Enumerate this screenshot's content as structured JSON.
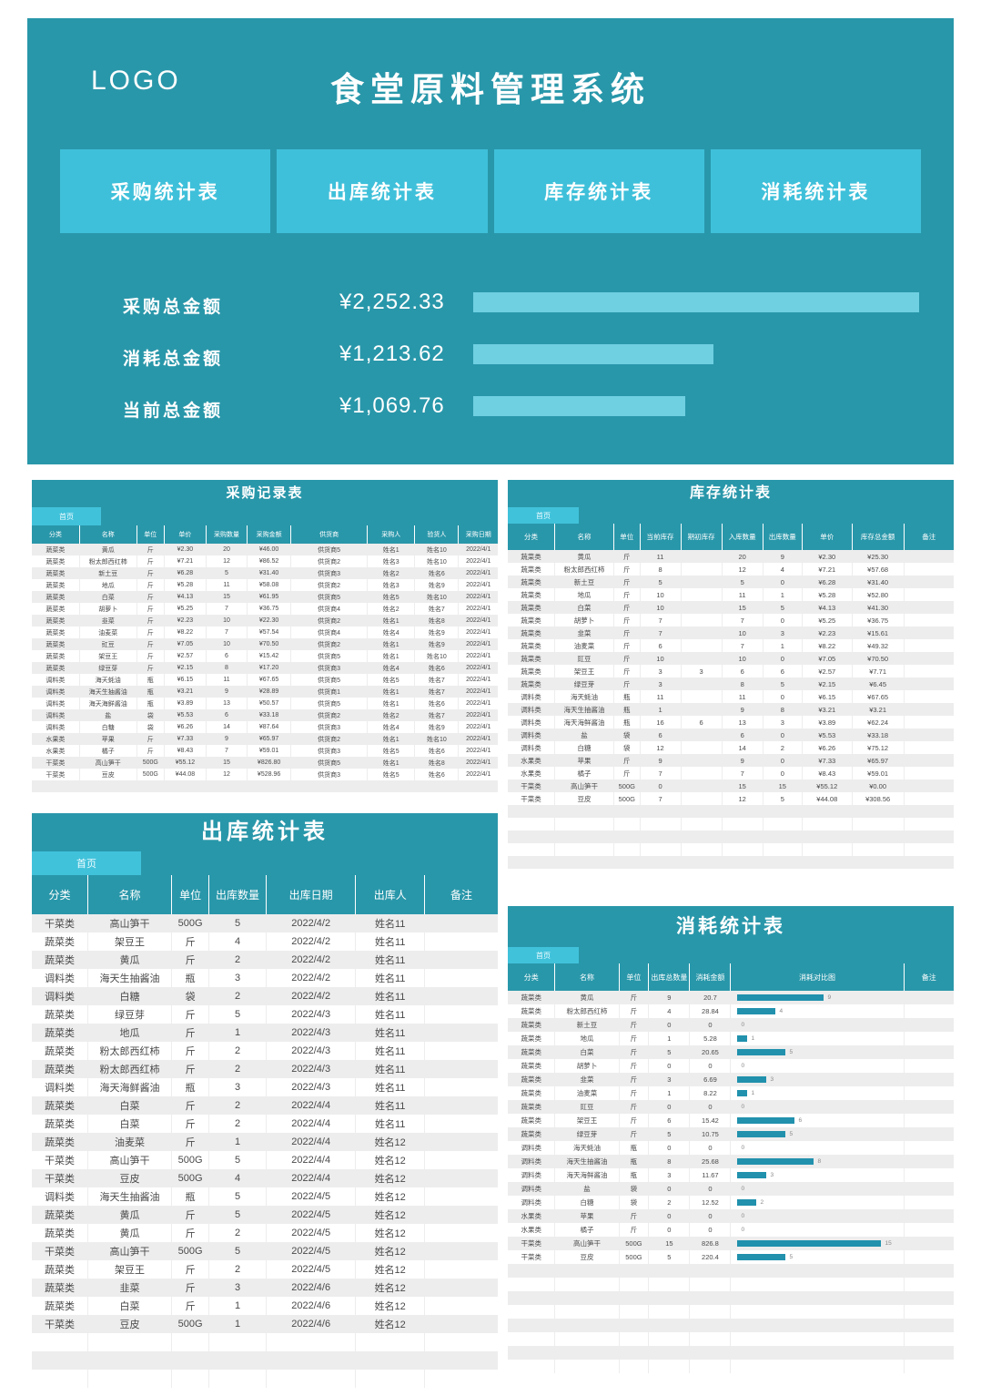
{
  "header": {
    "logo": "LOGO",
    "title": "食堂原料管理系统",
    "nav": [
      {
        "label": "采购统计表"
      },
      {
        "label": "出库统计表"
      },
      {
        "label": "库存统计表"
      },
      {
        "label": "消耗统计表"
      }
    ],
    "stats": [
      {
        "label": "采购总金额",
        "value": "¥2,252.33",
        "amount": 2252.33
      },
      {
        "label": "消耗总金额",
        "value": "¥1,213.62",
        "amount": 1213.62
      },
      {
        "label": "当前总金额",
        "value": "¥1,069.76",
        "amount": 1069.76
      }
    ]
  },
  "colors": {
    "teal": "#2997aa",
    "light_blue": "#3fc0da",
    "stat_bar": "#6fd0e2",
    "consumption_bar": "#2191ad",
    "row_alt": "#ededed"
  },
  "tables": {
    "purchase": {
      "title": "采购记录表",
      "tab": "首页",
      "columns": [
        "分类",
        "名称",
        "单位",
        "单价",
        "采购数量",
        "采购金额",
        "供货商",
        "采购人",
        "验货人",
        "采购日期"
      ],
      "empty_rows": 1,
      "rows": [
        [
          "蔬菜类",
          "黄瓜",
          "斤",
          "¥2.30",
          "20",
          "¥46.00",
          "供货商5",
          "姓名1",
          "姓名10",
          "2022/4/1"
        ],
        [
          "蔬菜类",
          "粉太郎西红柿",
          "斤",
          "¥7.21",
          "12",
          "¥86.52",
          "供货商2",
          "姓名3",
          "姓名10",
          "2022/4/1"
        ],
        [
          "蔬菜类",
          "新土豆",
          "斤",
          "¥6.28",
          "5",
          "¥31.40",
          "供货商3",
          "姓名2",
          "姓名6",
          "2022/4/1"
        ],
        [
          "蔬菜类",
          "地瓜",
          "斤",
          "¥5.28",
          "11",
          "¥58.08",
          "供货商2",
          "姓名3",
          "姓名9",
          "2022/4/1"
        ],
        [
          "蔬菜类",
          "白菜",
          "斤",
          "¥4.13",
          "15",
          "¥61.95",
          "供货商5",
          "姓名5",
          "姓名10",
          "2022/4/1"
        ],
        [
          "蔬菜类",
          "胡萝卜",
          "斤",
          "¥5.25",
          "7",
          "¥36.75",
          "供货商4",
          "姓名2",
          "姓名7",
          "2022/4/1"
        ],
        [
          "蔬菜类",
          "韭菜",
          "斤",
          "¥2.23",
          "10",
          "¥22.30",
          "供货商2",
          "姓名1",
          "姓名8",
          "2022/4/1"
        ],
        [
          "蔬菜类",
          "油麦菜",
          "斤",
          "¥8.22",
          "7",
          "¥57.54",
          "供货商4",
          "姓名4",
          "姓名9",
          "2022/4/1"
        ],
        [
          "蔬菜类",
          "豇豆",
          "斤",
          "¥7.05",
          "10",
          "¥70.50",
          "供货商2",
          "姓名1",
          "姓名9",
          "2022/4/1"
        ],
        [
          "蔬菜类",
          "架豆王",
          "斤",
          "¥2.57",
          "6",
          "¥15.42",
          "供货商5",
          "姓名1",
          "姓名10",
          "2022/4/1"
        ],
        [
          "蔬菜类",
          "绿豆芽",
          "斤",
          "¥2.15",
          "8",
          "¥17.20",
          "供货商3",
          "姓名4",
          "姓名6",
          "2022/4/1"
        ],
        [
          "调料类",
          "海天蚝油",
          "瓶",
          "¥6.15",
          "11",
          "¥67.65",
          "供货商5",
          "姓名5",
          "姓名7",
          "2022/4/1"
        ],
        [
          "调料类",
          "海天生抽酱油",
          "瓶",
          "¥3.21",
          "9",
          "¥28.89",
          "供货商1",
          "姓名1",
          "姓名7",
          "2022/4/1"
        ],
        [
          "调料类",
          "海天海鲜酱油",
          "瓶",
          "¥3.89",
          "13",
          "¥50.57",
          "供货商5",
          "姓名1",
          "姓名6",
          "2022/4/1"
        ],
        [
          "调料类",
          "盐",
          "袋",
          "¥5.53",
          "6",
          "¥33.18",
          "供货商2",
          "姓名2",
          "姓名7",
          "2022/4/1"
        ],
        [
          "调料类",
          "白糖",
          "袋",
          "¥6.26",
          "14",
          "¥87.64",
          "供货商3",
          "姓名4",
          "姓名9",
          "2022/4/1"
        ],
        [
          "水果类",
          "苹果",
          "斤",
          "¥7.33",
          "9",
          "¥65.97",
          "供货商2",
          "姓名1",
          "姓名10",
          "2022/4/1"
        ],
        [
          "水果类",
          "橘子",
          "斤",
          "¥8.43",
          "7",
          "¥59.01",
          "供货商3",
          "姓名5",
          "姓名6",
          "2022/4/1"
        ],
        [
          "干菜类",
          "高山笋干",
          "500G",
          "¥55.12",
          "15",
          "¥826.80",
          "供货商5",
          "姓名1",
          "姓名8",
          "2022/4/1"
        ],
        [
          "干菜类",
          "豆皮",
          "500G",
          "¥44.08",
          "12",
          "¥528.96",
          "供货商3",
          "姓名5",
          "姓名6",
          "2022/4/1"
        ]
      ]
    },
    "inventory": {
      "title": "库存统计表",
      "tab": "首页",
      "columns": [
        "分类",
        "名称",
        "单位",
        "当前库存",
        "期初库存",
        "入库数量",
        "出库数量",
        "单价",
        "库存总金额",
        "备注"
      ],
      "empty_rows": 5,
      "rows": [
        [
          "蔬菜类",
          "黄瓜",
          "斤",
          "11",
          "",
          "20",
          "9",
          "¥2.30",
          "¥25.30",
          ""
        ],
        [
          "蔬菜类",
          "粉太郎西红柿",
          "斤",
          "8",
          "",
          "12",
          "4",
          "¥7.21",
          "¥57.68",
          ""
        ],
        [
          "蔬菜类",
          "新土豆",
          "斤",
          "5",
          "",
          "5",
          "0",
          "¥6.28",
          "¥31.40",
          ""
        ],
        [
          "蔬菜类",
          "地瓜",
          "斤",
          "10",
          "",
          "11",
          "1",
          "¥5.28",
          "¥52.80",
          ""
        ],
        [
          "蔬菜类",
          "白菜",
          "斤",
          "10",
          "",
          "15",
          "5",
          "¥4.13",
          "¥41.30",
          ""
        ],
        [
          "蔬菜类",
          "胡萝卜",
          "斤",
          "7",
          "",
          "7",
          "0",
          "¥5.25",
          "¥36.75",
          ""
        ],
        [
          "蔬菜类",
          "韭菜",
          "斤",
          "7",
          "",
          "10",
          "3",
          "¥2.23",
          "¥15.61",
          ""
        ],
        [
          "蔬菜类",
          "油麦菜",
          "斤",
          "6",
          "",
          "7",
          "1",
          "¥8.22",
          "¥49.32",
          ""
        ],
        [
          "蔬菜类",
          "豇豆",
          "斤",
          "10",
          "",
          "10",
          "0",
          "¥7.05",
          "¥70.50",
          ""
        ],
        [
          "蔬菜类",
          "架豆王",
          "斤",
          "3",
          "3",
          "6",
          "6",
          "¥2.57",
          "¥7.71",
          ""
        ],
        [
          "蔬菜类",
          "绿豆芽",
          "斤",
          "3",
          "",
          "8",
          "5",
          "¥2.15",
          "¥6.45",
          ""
        ],
        [
          "调料类",
          "海天蚝油",
          "瓶",
          "11",
          "",
          "11",
          "0",
          "¥6.15",
          "¥67.65",
          ""
        ],
        [
          "调料类",
          "海天生抽酱油",
          "瓶",
          "1",
          "",
          "9",
          "8",
          "¥3.21",
          "¥3.21",
          ""
        ],
        [
          "调料类",
          "海天海鲜酱油",
          "瓶",
          "16",
          "6",
          "13",
          "3",
          "¥3.89",
          "¥62.24",
          ""
        ],
        [
          "调料类",
          "盐",
          "袋",
          "6",
          "",
          "6",
          "0",
          "¥5.53",
          "¥33.18",
          ""
        ],
        [
          "调料类",
          "白糖",
          "袋",
          "12",
          "",
          "14",
          "2",
          "¥6.26",
          "¥75.12",
          ""
        ],
        [
          "水果类",
          "苹果",
          "斤",
          "9",
          "",
          "9",
          "0",
          "¥7.33",
          "¥65.97",
          ""
        ],
        [
          "水果类",
          "橘子",
          "斤",
          "7",
          "",
          "7",
          "0",
          "¥8.43",
          "¥59.01",
          ""
        ],
        [
          "干菜类",
          "高山笋干",
          "500G",
          "0",
          "",
          "15",
          "15",
          "¥55.12",
          "¥0.00",
          ""
        ],
        [
          "干菜类",
          "豆皮",
          "500G",
          "7",
          "",
          "12",
          "5",
          "¥44.08",
          "¥308.56",
          ""
        ]
      ]
    },
    "outbound": {
      "title": "出库统计表",
      "tab": "首页",
      "columns": [
        "分类",
        "名称",
        "单位",
        "出库数量",
        "出库日期",
        "出库人",
        "备注"
      ],
      "empty_rows": 3,
      "rows": [
        [
          "干菜类",
          "高山笋干",
          "500G",
          "5",
          "2022/4/2",
          "姓名11",
          ""
        ],
        [
          "蔬菜类",
          "架豆王",
          "斤",
          "4",
          "2022/4/2",
          "姓名11",
          ""
        ],
        [
          "蔬菜类",
          "黄瓜",
          "斤",
          "2",
          "2022/4/2",
          "姓名11",
          ""
        ],
        [
          "调料类",
          "海天生抽酱油",
          "瓶",
          "3",
          "2022/4/2",
          "姓名11",
          ""
        ],
        [
          "调料类",
          "白糖",
          "袋",
          "2",
          "2022/4/2",
          "姓名11",
          ""
        ],
        [
          "蔬菜类",
          "绿豆芽",
          "斤",
          "5",
          "2022/4/3",
          "姓名11",
          ""
        ],
        [
          "蔬菜类",
          "地瓜",
          "斤",
          "1",
          "2022/4/3",
          "姓名11",
          ""
        ],
        [
          "蔬菜类",
          "粉太郎西红柿",
          "斤",
          "2",
          "2022/4/3",
          "姓名11",
          ""
        ],
        [
          "蔬菜类",
          "粉太郎西红柿",
          "斤",
          "2",
          "2022/4/3",
          "姓名11",
          ""
        ],
        [
          "调料类",
          "海天海鲜酱油",
          "瓶",
          "3",
          "2022/4/3",
          "姓名11",
          ""
        ],
        [
          "蔬菜类",
          "白菜",
          "斤",
          "2",
          "2022/4/4",
          "姓名11",
          ""
        ],
        [
          "蔬菜类",
          "白菜",
          "斤",
          "2",
          "2022/4/4",
          "姓名11",
          ""
        ],
        [
          "蔬菜类",
          "油麦菜",
          "斤",
          "1",
          "2022/4/4",
          "姓名12",
          ""
        ],
        [
          "干菜类",
          "高山笋干",
          "500G",
          "5",
          "2022/4/4",
          "姓名12",
          ""
        ],
        [
          "干菜类",
          "豆皮",
          "500G",
          "4",
          "2022/4/4",
          "姓名12",
          ""
        ],
        [
          "调料类",
          "海天生抽酱油",
          "瓶",
          "5",
          "2022/4/5",
          "姓名12",
          ""
        ],
        [
          "蔬菜类",
          "黄瓜",
          "斤",
          "5",
          "2022/4/5",
          "姓名12",
          ""
        ],
        [
          "蔬菜类",
          "黄瓜",
          "斤",
          "2",
          "2022/4/5",
          "姓名12",
          ""
        ],
        [
          "干菜类",
          "高山笋干",
          "500G",
          "5",
          "2022/4/5",
          "姓名12",
          ""
        ],
        [
          "蔬菜类",
          "架豆王",
          "斤",
          "2",
          "2022/4/5",
          "姓名12",
          ""
        ],
        [
          "蔬菜类",
          "韭菜",
          "斤",
          "3",
          "2022/4/6",
          "姓名12",
          ""
        ],
        [
          "蔬菜类",
          "白菜",
          "斤",
          "1",
          "2022/4/6",
          "姓名12",
          ""
        ],
        [
          "干菜类",
          "豆皮",
          "500G",
          "1",
          "2022/4/6",
          "姓名12",
          ""
        ]
      ]
    },
    "consumption": {
      "title": "消耗统计表",
      "tab": "首页",
      "columns": [
        "分类",
        "名称",
        "单位",
        "出库总数量",
        "消耗金额",
        "消耗对比图",
        "备注"
      ],
      "empty_rows": 8,
      "bar_max": 15,
      "rows": [
        [
          "蔬菜类",
          "黄瓜",
          "斤",
          "9",
          "20.7"
        ],
        [
          "蔬菜类",
          "粉太郎西红柿",
          "斤",
          "4",
          "28.84"
        ],
        [
          "蔬菜类",
          "新土豆",
          "斤",
          "0",
          "0"
        ],
        [
          "蔬菜类",
          "地瓜",
          "斤",
          "1",
          "5.28"
        ],
        [
          "蔬菜类",
          "白菜",
          "斤",
          "5",
          "20.65"
        ],
        [
          "蔬菜类",
          "胡萝卜",
          "斤",
          "0",
          "0"
        ],
        [
          "蔬菜类",
          "韭菜",
          "斤",
          "3",
          "6.69"
        ],
        [
          "蔬菜类",
          "油麦菜",
          "斤",
          "1",
          "8.22"
        ],
        [
          "蔬菜类",
          "豇豆",
          "斤",
          "0",
          "0"
        ],
        [
          "蔬菜类",
          "架豆王",
          "斤",
          "6",
          "15.42"
        ],
        [
          "蔬菜类",
          "绿豆芽",
          "斤",
          "5",
          "10.75"
        ],
        [
          "调料类",
          "海天蚝油",
          "瓶",
          "0",
          "0"
        ],
        [
          "调料类",
          "海天生抽酱油",
          "瓶",
          "8",
          "25.68"
        ],
        [
          "调料类",
          "海天海鲜酱油",
          "瓶",
          "3",
          "11.67"
        ],
        [
          "调料类",
          "盐",
          "袋",
          "0",
          "0"
        ],
        [
          "调料类",
          "白糖",
          "袋",
          "2",
          "12.52"
        ],
        [
          "水果类",
          "苹果",
          "斤",
          "0",
          "0"
        ],
        [
          "水果类",
          "橘子",
          "斤",
          "0",
          "0"
        ],
        [
          "干菜类",
          "高山笋干",
          "500G",
          "15",
          "826.8"
        ],
        [
          "干菜类",
          "豆皮",
          "500G",
          "5",
          "220.4"
        ]
      ]
    }
  }
}
